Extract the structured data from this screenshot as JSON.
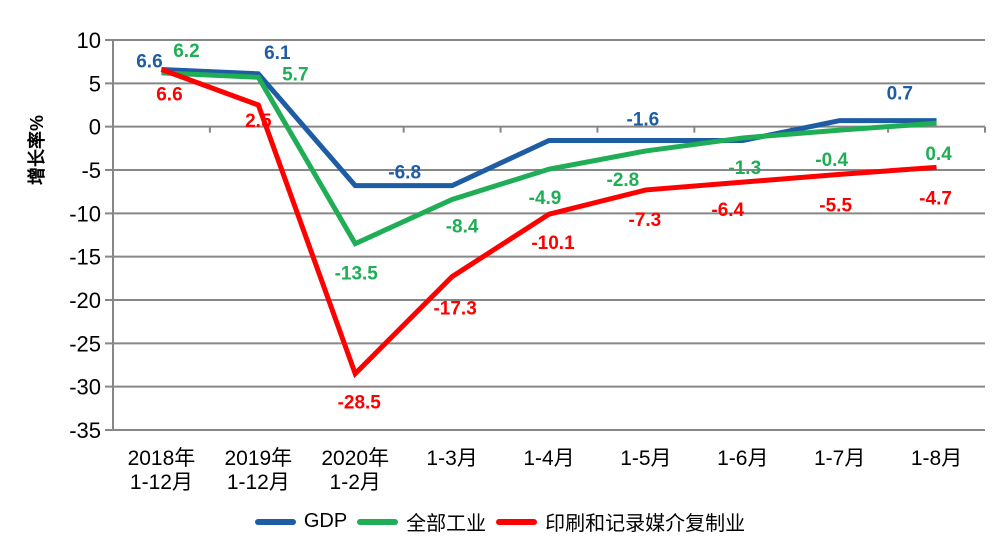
{
  "chart_data": {
    "type": "line",
    "title": "",
    "ylabel": "增长率%",
    "xlabel": "",
    "ylim": [
      -35,
      10
    ],
    "yticks": [
      10,
      5,
      0,
      -5,
      -10,
      -15,
      -20,
      -25,
      -30,
      -35
    ],
    "grid": true,
    "legend_position": "bottom",
    "grid_color": "#878787",
    "axis_text_color": "#000000",
    "categories": [
      [
        "2018年",
        "1-12月"
      ],
      [
        "2019年",
        "1-12月"
      ],
      [
        "2020年",
        "1-2月"
      ],
      [
        "1-3月"
      ],
      [
        "1-4月"
      ],
      [
        "1-5月"
      ],
      [
        "1-6月"
      ],
      [
        "1-7月"
      ],
      [
        "1-8月"
      ]
    ],
    "series": [
      {
        "id": "gdp",
        "name": "GDP",
        "color": "#1E5CA4",
        "values": [
          6.6,
          6.1,
          -6.8,
          -6.8,
          -1.6,
          -1.6,
          -1.6,
          0.7,
          0.7
        ],
        "labels": [
          {
            "text": "6.6",
            "i": 0,
            "dx": -12,
            "dy": -9
          },
          {
            "text": "6.1",
            "i": 1,
            "dx": 19,
            "dy": -22
          },
          {
            "text": "-6.8",
            "i": 2.5,
            "dx": 1,
            "dy": -14
          },
          {
            "text": "-1.6",
            "i": 5,
            "dx": -3,
            "dy": -22
          },
          {
            "text": "0.7",
            "i": 7.6,
            "dx": 2,
            "dy": -28
          }
        ]
      },
      {
        "id": "industry",
        "name": "全部工业",
        "color": "#1FAD55",
        "values": [
          6.2,
          5.7,
          -13.5,
          -8.4,
          -4.9,
          -2.8,
          -1.3,
          -0.4,
          0.4
        ],
        "labels": [
          {
            "text": "6.2",
            "i": 0,
            "dx": 25,
            "dy": -23
          },
          {
            "text": "5.7",
            "i": 1,
            "dx": 37,
            "dy": -4
          },
          {
            "text": "-13.5",
            "i": 2,
            "dx": 1,
            "dy": 29
          },
          {
            "text": "-8.4",
            "i": 3,
            "dx": 10,
            "dy": 26
          },
          {
            "text": "-4.9",
            "i": 4,
            "dx": -4,
            "dy": 28
          },
          {
            "text": "-2.8",
            "i": 5,
            "dx": -23,
            "dy": 28
          },
          {
            "text": "-1.3",
            "i": 6,
            "dx": 2,
            "dy": 29
          },
          {
            "text": "-0.4",
            "i": 7,
            "dx": -8,
            "dy": 29
          },
          {
            "text": "0.4",
            "i": 8,
            "dx": 2,
            "dy": 30
          }
        ]
      },
      {
        "id": "printing",
        "name": "印刷和记录媒介复制业",
        "color": "#FF0000",
        "values": [
          6.6,
          2.5,
          -28.5,
          -17.3,
          -10.1,
          -7.3,
          -6.4,
          -5.5,
          -4.7
        ],
        "labels": [
          {
            "text": "6.6",
            "i": 0,
            "dx": 8,
            "dy": 24
          },
          {
            "text": "2.5",
            "i": 1,
            "dx": 0,
            "dy": 15
          },
          {
            "text": "-28.5",
            "i": 2,
            "dx": 4,
            "dy": 28
          },
          {
            "text": "-17.3",
            "i": 3,
            "dx": 3,
            "dy": 31
          },
          {
            "text": "-10.1",
            "i": 4,
            "dx": 4,
            "dy": 28
          },
          {
            "text": "-7.3",
            "i": 5,
            "dx": -1,
            "dy": 29
          },
          {
            "text": "-6.4",
            "i": 6,
            "dx": -15,
            "dy": 27
          },
          {
            "text": "-5.5",
            "i": 7,
            "dx": -4,
            "dy": 30
          },
          {
            "text": "-4.7",
            "i": 8,
            "dx": -1,
            "dy": 30
          }
        ]
      }
    ]
  }
}
